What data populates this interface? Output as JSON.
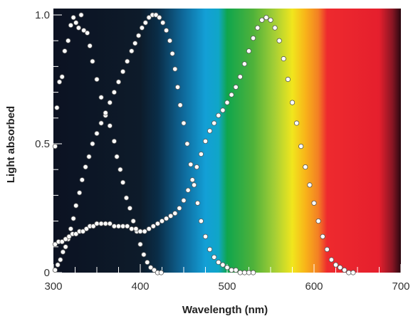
{
  "chart_data": {
    "type": "scatter",
    "title": "",
    "xlabel": "Wavelength (nm)",
    "ylabel": "Light absorbed",
    "xlim": [
      300,
      700
    ],
    "ylim": [
      0,
      1.0
    ],
    "x_ticks": [
      300,
      400,
      500,
      600,
      700
    ],
    "y_ticks": [
      0,
      0.5,
      1.0
    ],
    "x_tick_labels": [
      "300",
      "400",
      "500",
      "600",
      "700"
    ],
    "y_tick_labels": [
      "0",
      "0.5",
      "1.0"
    ],
    "grid": false,
    "legend": "none",
    "background": "visible spectrum gradient: black (UV) to violet, blue, green, yellow, orange, red, dark red",
    "spectrum_stops": [
      {
        "nm": 300,
        "color": "#0c1222"
      },
      {
        "nm": 400,
        "color": "#0d1b2a"
      },
      {
        "nm": 420,
        "color": "#0a2d47"
      },
      {
        "nm": 450,
        "color": "#0f6a9c"
      },
      {
        "nm": 475,
        "color": "#139fd6"
      },
      {
        "nm": 490,
        "color": "#10a6c8"
      },
      {
        "nm": 500,
        "color": "#0fa54d"
      },
      {
        "nm": 530,
        "color": "#4fb23a"
      },
      {
        "nm": 555,
        "color": "#a6cf35"
      },
      {
        "nm": 575,
        "color": "#f1e61d"
      },
      {
        "nm": 590,
        "color": "#f8b419"
      },
      {
        "nm": 605,
        "color": "#f37f24"
      },
      {
        "nm": 615,
        "color": "#ee2a2e"
      },
      {
        "nm": 675,
        "color": "#e51f2d"
      },
      {
        "nm": 690,
        "color": "#8a1624"
      },
      {
        "nm": 700,
        "color": "#2a0710"
      }
    ],
    "marker_color": "#ffffff",
    "marker_edge": "#555555",
    "series": [
      {
        "x": [
          302,
          304,
          307,
          310,
          313,
          317,
          320,
          323,
          326,
          329,
          332,
          335,
          339,
          342,
          345,
          350,
          355,
          360,
          365,
          370,
          373,
          377,
          380,
          384,
          388,
          392,
          396,
          400,
          404,
          408,
          412,
          416,
          420,
          424
        ],
        "y": [
          0.49,
          0.64,
          0.74,
          0.76,
          0.86,
          0.9,
          0.96,
          0.99,
          0.97,
          0.95,
          1.0,
          0.94,
          0.93,
          0.88,
          0.82,
          0.75,
          0.68,
          0.61,
          0.57,
          0.51,
          0.45,
          0.4,
          0.35,
          0.29,
          0.25,
          0.2,
          0.16,
          0.11,
          0.07,
          0.04,
          0.02,
          0.01,
          0.0,
          0.0
        ]
      },
      {
        "x": [
          302,
          305,
          308,
          311,
          314,
          317,
          320,
          323,
          326,
          330,
          333,
          337,
          341,
          345,
          350,
          355,
          360,
          365,
          370,
          375,
          380,
          385,
          390,
          394,
          398,
          402,
          406,
          410,
          414,
          418,
          422,
          426,
          430,
          434,
          437,
          440,
          443,
          446,
          450,
          454,
          458,
          462,
          466,
          470,
          475,
          480,
          485,
          490,
          495,
          500,
          505,
          510,
          515,
          520,
          525,
          530
        ],
        "y": [
          0.01,
          0.03,
          0.05,
          0.08,
          0.1,
          0.13,
          0.17,
          0.21,
          0.26,
          0.31,
          0.36,
          0.41,
          0.45,
          0.5,
          0.54,
          0.58,
          0.62,
          0.66,
          0.7,
          0.74,
          0.78,
          0.82,
          0.86,
          0.89,
          0.92,
          0.95,
          0.97,
          0.99,
          1.0,
          1.0,
          0.99,
          0.97,
          0.94,
          0.9,
          0.85,
          0.79,
          0.72,
          0.65,
          0.58,
          0.5,
          0.42,
          0.34,
          0.27,
          0.2,
          0.14,
          0.09,
          0.06,
          0.04,
          0.03,
          0.02,
          0.01,
          0.01,
          0.0,
          0.0,
          0.0,
          0.0
        ]
      },
      {
        "x": [
          302,
          306,
          310,
          314,
          318,
          322,
          326,
          330,
          334,
          338,
          342,
          346,
          350,
          355,
          360,
          365,
          370,
          375,
          380,
          385,
          390,
          395,
          400,
          405,
          410,
          415,
          420,
          425,
          430,
          435,
          440,
          445,
          450,
          455,
          460,
          465,
          470,
          475,
          480,
          485,
          490,
          495,
          500,
          505,
          510,
          515,
          520,
          525,
          530,
          535,
          540,
          545,
          550,
          555,
          560,
          565,
          570,
          575,
          580,
          585,
          590,
          595,
          600,
          605,
          610,
          615,
          620,
          625,
          630,
          635,
          640,
          645
        ],
        "y": [
          0.11,
          0.12,
          0.12,
          0.13,
          0.14,
          0.15,
          0.15,
          0.16,
          0.16,
          0.17,
          0.18,
          0.18,
          0.19,
          0.19,
          0.19,
          0.19,
          0.18,
          0.18,
          0.18,
          0.18,
          0.17,
          0.17,
          0.16,
          0.16,
          0.17,
          0.18,
          0.19,
          0.2,
          0.21,
          0.22,
          0.23,
          0.25,
          0.28,
          0.32,
          0.36,
          0.41,
          0.46,
          0.51,
          0.55,
          0.58,
          0.61,
          0.63,
          0.66,
          0.69,
          0.72,
          0.76,
          0.81,
          0.86,
          0.91,
          0.95,
          0.98,
          0.99,
          0.98,
          0.95,
          0.9,
          0.83,
          0.75,
          0.66,
          0.58,
          0.49,
          0.41,
          0.34,
          0.27,
          0.2,
          0.14,
          0.09,
          0.05,
          0.03,
          0.02,
          0.01,
          0.0,
          0.0
        ]
      }
    ]
  }
}
